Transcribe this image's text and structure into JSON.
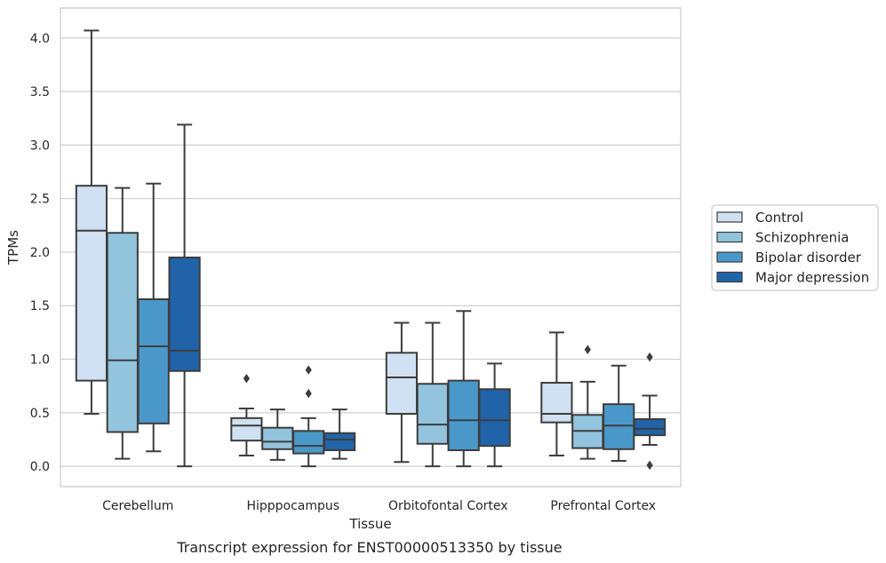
{
  "caption": "Transcript expression for ENST00000513350 by tissue",
  "chart_data": {
    "type": "box",
    "xlabel": "Tissue",
    "ylabel": "TPMs",
    "ylim": [
      -0.19,
      4.28
    ],
    "yticks": [
      "0.0",
      "0.5",
      "1.0",
      "1.5",
      "2.0",
      "2.5",
      "3.0",
      "3.5",
      "4.0"
    ],
    "ytick_values": [
      0,
      0.5,
      1.0,
      1.5,
      2.0,
      2.5,
      3.0,
      3.5,
      4.0
    ],
    "grid": "horizontal",
    "legend_position": "right",
    "categories": [
      "Cerebellum",
      "Hipppocampus",
      "Orbitofontal Cortex",
      "Prefrontal Cortex"
    ],
    "series": [
      {
        "name": "Control",
        "color": "#cfe1f2",
        "boxes": [
          {
            "whislo": 0.49,
            "q1": 0.8,
            "med": 2.2,
            "q3": 2.62,
            "whishi": 4.07,
            "fliers": []
          },
          {
            "whislo": 0.1,
            "q1": 0.24,
            "med": 0.38,
            "q3": 0.45,
            "whishi": 0.54,
            "fliers": [
              0.82
            ]
          },
          {
            "whislo": 0.04,
            "q1": 0.49,
            "med": 0.83,
            "q3": 1.06,
            "whishi": 1.34,
            "fliers": []
          },
          {
            "whislo": 0.1,
            "q1": 0.41,
            "med": 0.49,
            "q3": 0.78,
            "whishi": 1.25,
            "fliers": []
          }
        ]
      },
      {
        "name": "Schizophrenia",
        "color": "#93c4de",
        "boxes": [
          {
            "whislo": 0.07,
            "q1": 0.32,
            "med": 0.99,
            "q3": 2.18,
            "whishi": 2.6,
            "fliers": []
          },
          {
            "whislo": 0.06,
            "q1": 0.16,
            "med": 0.23,
            "q3": 0.36,
            "whishi": 0.53,
            "fliers": []
          },
          {
            "whislo": 0.0,
            "q1": 0.21,
            "med": 0.39,
            "q3": 0.77,
            "whishi": 1.34,
            "fliers": []
          },
          {
            "whislo": 0.07,
            "q1": 0.17,
            "med": 0.33,
            "q3": 0.48,
            "whishi": 0.79,
            "fliers": [
              1.09
            ]
          }
        ]
      },
      {
        "name": "Bipolar disorder",
        "color": "#4a98c9",
        "boxes": [
          {
            "whislo": 0.14,
            "q1": 0.4,
            "med": 1.12,
            "q3": 1.56,
            "whishi": 2.64,
            "fliers": []
          },
          {
            "whislo": 0.0,
            "q1": 0.12,
            "med": 0.19,
            "q3": 0.33,
            "whishi": 0.45,
            "fliers": [
              0.9,
              0.68
            ]
          },
          {
            "whislo": 0.0,
            "q1": 0.15,
            "med": 0.43,
            "q3": 0.8,
            "whishi": 1.45,
            "fliers": []
          },
          {
            "whislo": 0.05,
            "q1": 0.16,
            "med": 0.38,
            "q3": 0.58,
            "whishi": 0.94,
            "fliers": []
          }
        ]
      },
      {
        "name": "Major depression",
        "color": "#2163a8",
        "boxes": [
          {
            "whislo": 0.0,
            "q1": 0.89,
            "med": 1.08,
            "q3": 1.95,
            "whishi": 3.19,
            "fliers": []
          },
          {
            "whislo": 0.07,
            "q1": 0.15,
            "med": 0.25,
            "q3": 0.31,
            "whishi": 0.53,
            "fliers": []
          },
          {
            "whislo": 0.0,
            "q1": 0.19,
            "med": 0.43,
            "q3": 0.72,
            "whishi": 0.96,
            "fliers": []
          },
          {
            "whislo": 0.2,
            "q1": 0.29,
            "med": 0.35,
            "q3": 0.44,
            "whishi": 0.66,
            "fliers": [
              1.02,
              0.01
            ]
          }
        ]
      }
    ]
  }
}
